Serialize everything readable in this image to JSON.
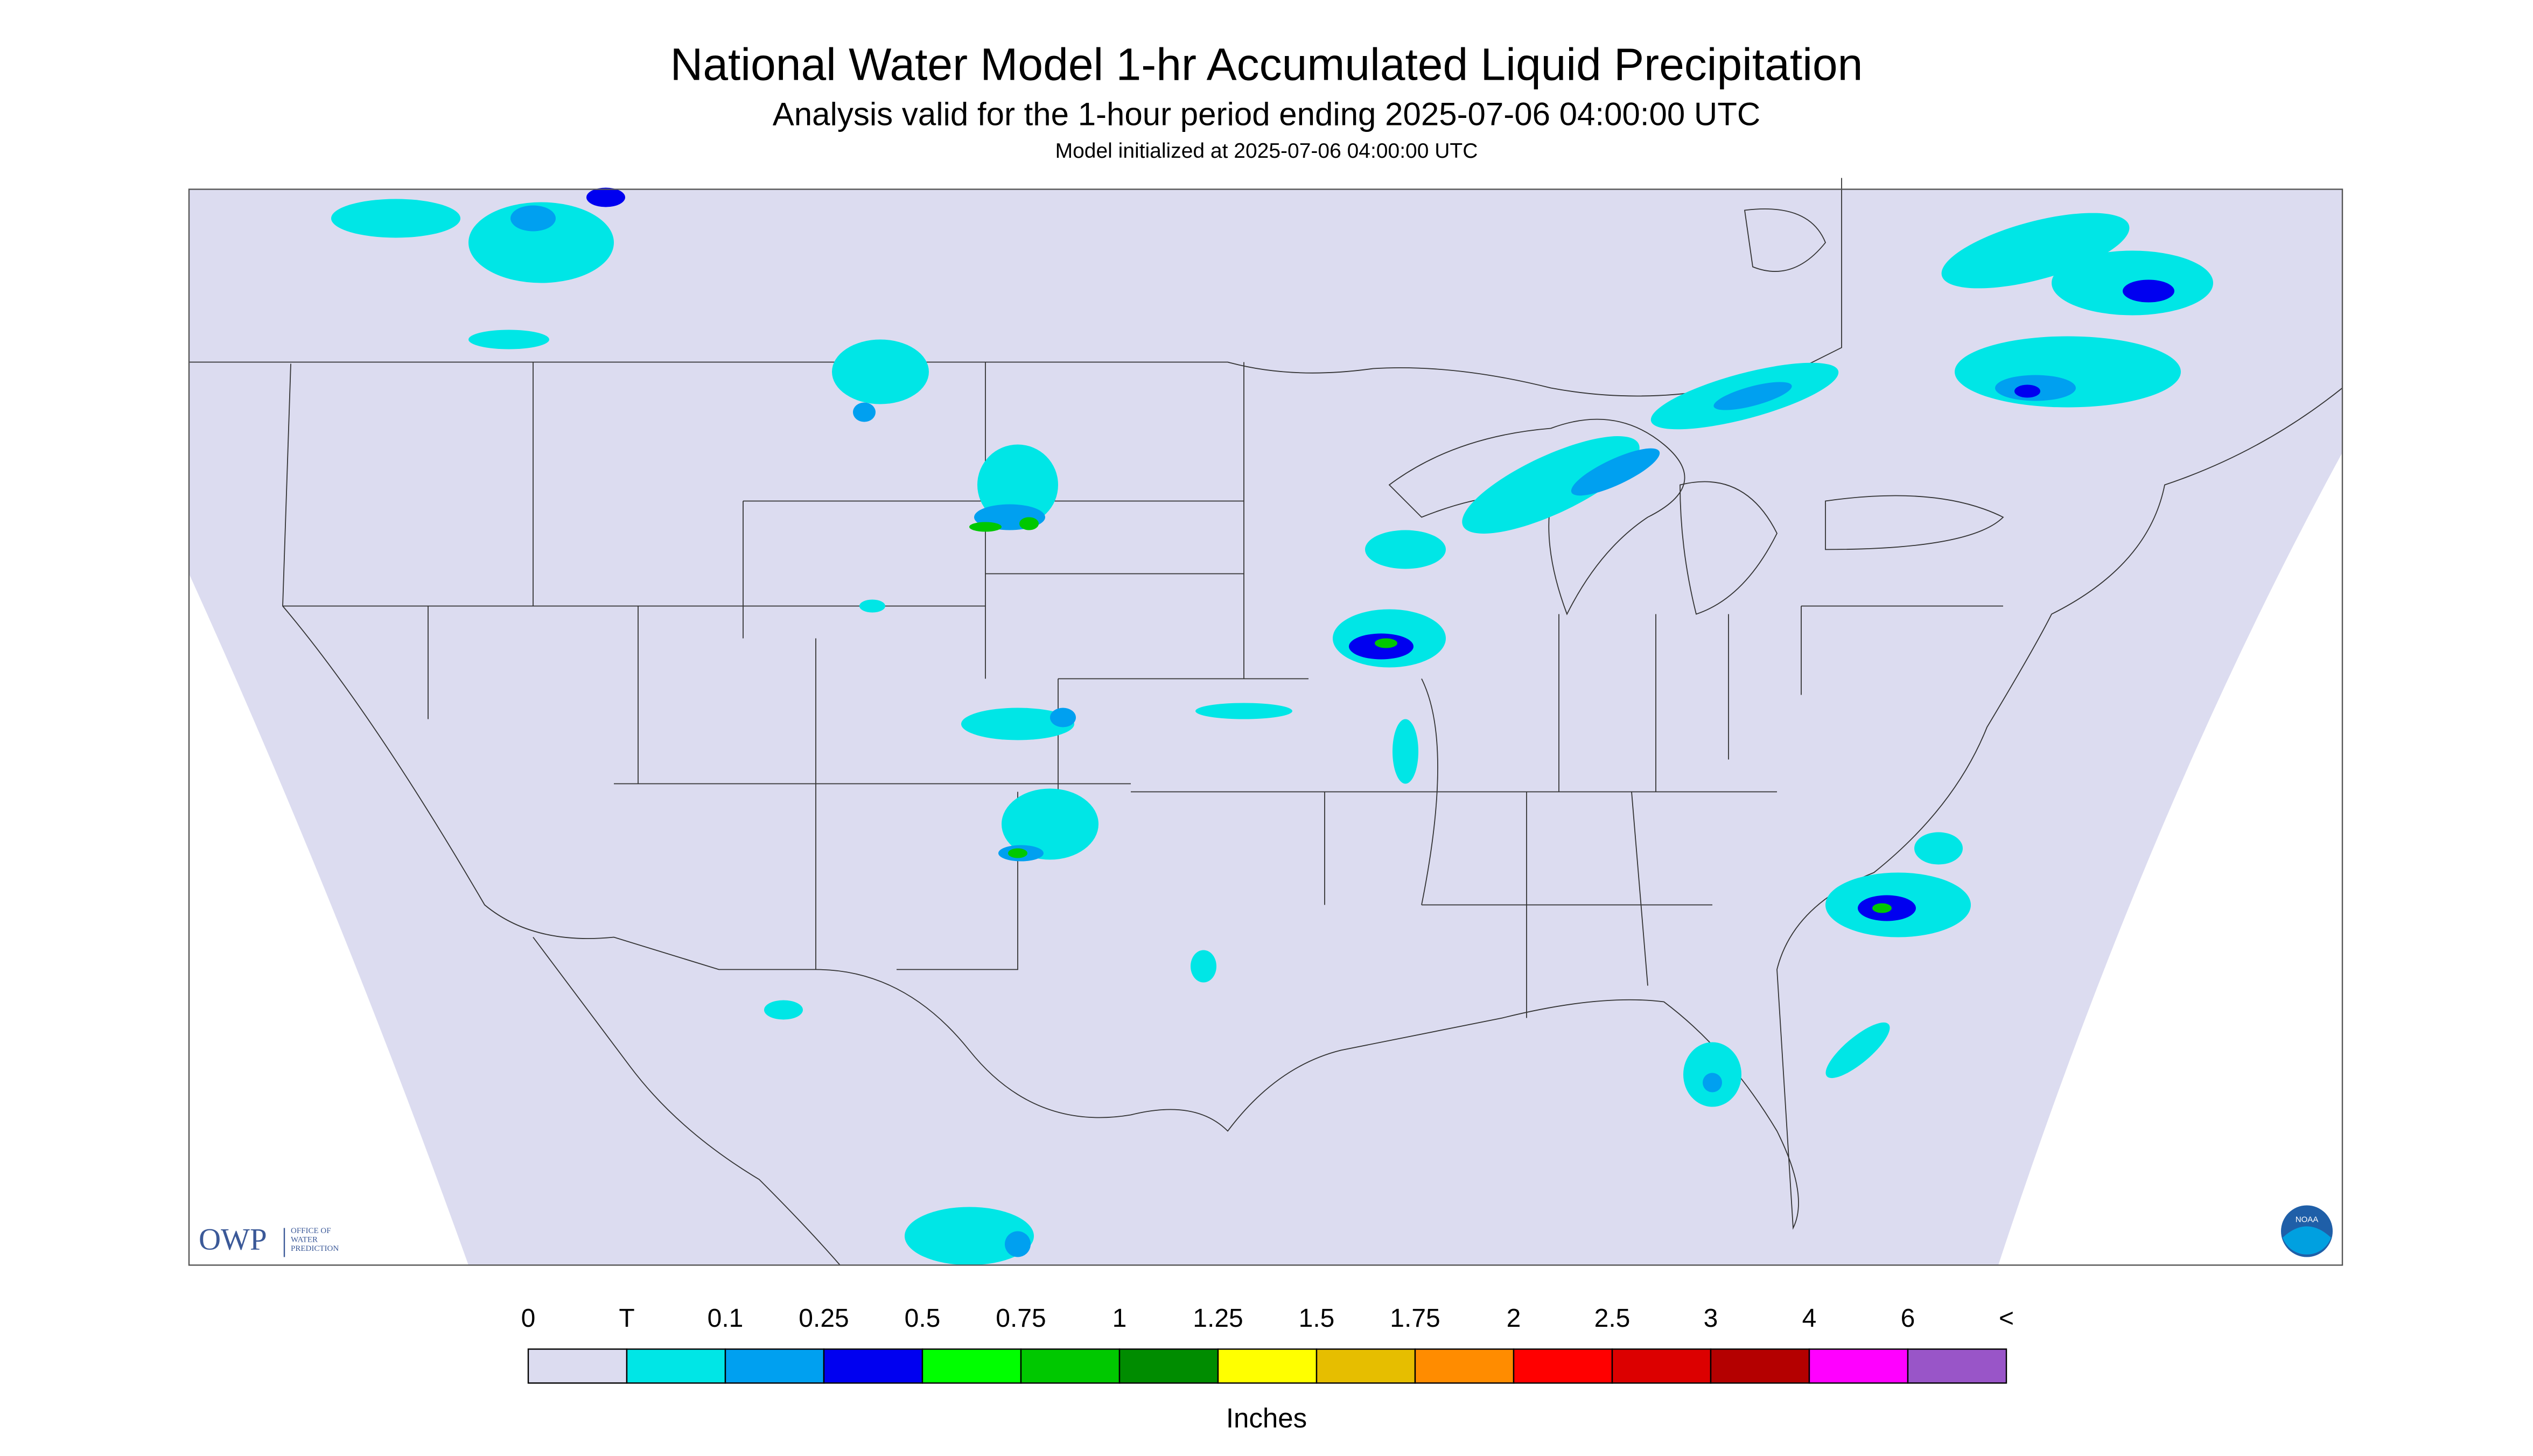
{
  "header": {
    "title": "National Water Model 1-hr Accumulated Liquid Precipitation",
    "subtitle": "Analysis valid for the 1-hour period ending 2025-07-06 04:00:00 UTC",
    "model_init": "Model initialized at 2025-07-06 04:00:00 UTC"
  },
  "legend": {
    "labels": [
      "0",
      "T",
      "0.1",
      "0.25",
      "0.5",
      "0.75",
      "1",
      "1.25",
      "1.5",
      "1.75",
      "2",
      "2.5",
      "3",
      "4",
      "6",
      "<"
    ],
    "colors": [
      "#dcdcf0",
      "#00e6e6",
      "#00a0f0",
      "#0000f0",
      "#00ff00",
      "#00c800",
      "#008c00",
      "#ffff00",
      "#e6be00",
      "#ff8c00",
      "#ff0000",
      "#dc0000",
      "#b40000",
      "#ff00ff",
      "#9955c8"
    ],
    "units": "Inches"
  },
  "logos": {
    "owp": "OWP",
    "owp_lines": [
      "OFFICE OF",
      "WATER",
      "PREDICTION"
    ],
    "noaa": "NOAA"
  }
}
